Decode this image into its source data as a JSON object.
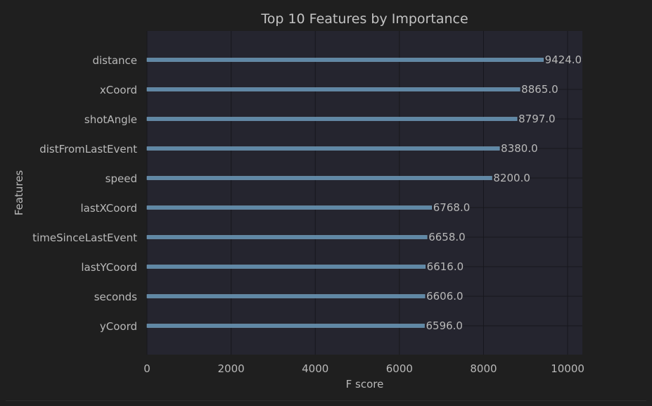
{
  "colors": {
    "page_background": "#1f1f1f",
    "plot_background": "#25252f",
    "grid": "#17171d",
    "bar": "#5f88a6",
    "bar_edge": "#7ea6c2",
    "text": "#b9b9b9",
    "title": "#c3c3c3"
  },
  "chart_data": {
    "type": "bar",
    "orientation": "horizontal",
    "title": "Top 10 Features by Importance",
    "xlabel": "F score",
    "ylabel": "Features",
    "xlim": [
      0,
      10350
    ],
    "xticks": [
      0,
      2000,
      4000,
      6000,
      8000,
      10000
    ],
    "xtick_labels": [
      "0",
      "2000",
      "4000",
      "6000",
      "8000",
      "10000"
    ],
    "grid": true,
    "categories": [
      "distance",
      "xCoord",
      "shotAngle",
      "distFromLastEvent",
      "speed",
      "lastXCoord",
      "timeSinceLastEvent",
      "lastYCoord",
      "seconds",
      "yCoord"
    ],
    "values": [
      9424.0,
      8865.0,
      8797.0,
      8380.0,
      8200.0,
      6768.0,
      6658.0,
      6616.0,
      6606.0,
      6596.0
    ],
    "value_labels": [
      "9424.0",
      "8865.0",
      "8797.0",
      "8380.0",
      "8200.0",
      "6768.0",
      "6658.0",
      "6616.0",
      "6606.0",
      "6596.0"
    ]
  }
}
